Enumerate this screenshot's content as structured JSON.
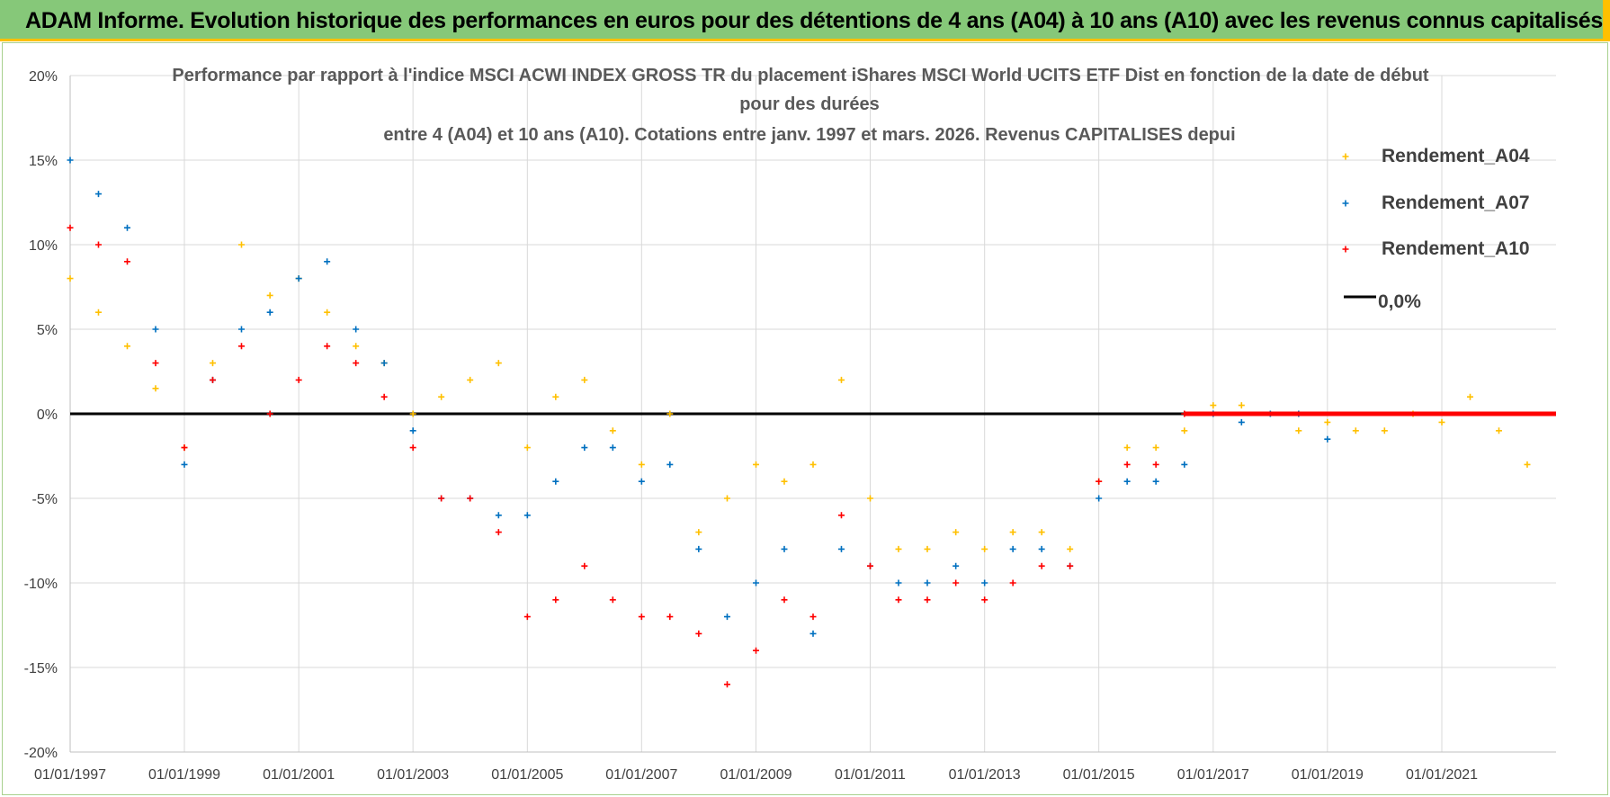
{
  "banner": {
    "title": "ADAM Informe. Evolution historique des performances en euros pour des détentions de 4 ans (A04) à 10 ans (A10) avec les revenus connus capitalisés"
  },
  "colors": {
    "banner_bg": "#86c879",
    "banner_accent": "#ffc000",
    "A04": "#ffc000",
    "A07": "#0070c0",
    "A10": "#ff0000",
    "zero_line": "#000000",
    "grid": "#d9d9d9"
  },
  "chart_data": {
    "type": "scatter",
    "title_lines": [
      "Performance par rapport à l'indice MSCI ACWI INDEX GROSS TR  du placement iShares MSCI World UCITS ETF Dist en fonction de la date de début",
      "pour des durées",
      "entre 4 (A04) et 10 ans (A10). Cotations entre janv. 1997 et mars. 2026. Revenus CAPITALISES depui"
    ],
    "x_axis": {
      "type": "date",
      "range": [
        "1997-01-01",
        "2023-01-01"
      ],
      "tick_labels": [
        "01/01/1997",
        "01/01/1999",
        "01/01/2001",
        "01/01/2003",
        "01/01/2005",
        "01/01/2007",
        "01/01/2009",
        "01/01/2011",
        "01/01/2013",
        "01/01/2015",
        "01/01/2017",
        "01/01/2019",
        "01/01/2021"
      ]
    },
    "y_axis": {
      "unit": "%",
      "range": [
        -20,
        20
      ],
      "tick_values": [
        20,
        15,
        10,
        5,
        0,
        -5,
        -10,
        -15,
        -20
      ],
      "tick_labels": [
        "20%",
        "15%",
        "10%",
        "5%",
        "0%",
        "-5%",
        "-10%",
        "-15%",
        "-20%"
      ]
    },
    "grid": true,
    "legend_position": "right",
    "legend": [
      "Rendement_A04",
      "Rendement_A07",
      "Rendement_A10",
      "0,0%"
    ],
    "series": [
      {
        "name": "Rendement_A04",
        "x": [
          "1997-01-01",
          "1997-07-01",
          "1998-01-01",
          "1998-07-01",
          "1999-01-01",
          "1999-07-01",
          "2000-01-01",
          "2000-07-01",
          "2001-01-01",
          "2001-07-01",
          "2002-01-01",
          "2002-07-01",
          "2003-01-01",
          "2003-07-01",
          "2004-01-01",
          "2004-07-01",
          "2005-01-01",
          "2005-07-01",
          "2006-01-01",
          "2006-07-01",
          "2007-01-01",
          "2007-07-01",
          "2008-01-01",
          "2008-07-01",
          "2009-01-01",
          "2009-07-01",
          "2010-01-01",
          "2010-07-01",
          "2011-01-01",
          "2011-07-01",
          "2012-01-01",
          "2012-07-01",
          "2013-01-01",
          "2013-07-01",
          "2014-01-01",
          "2014-07-01",
          "2015-01-01",
          "2015-07-01",
          "2016-01-01",
          "2016-07-01",
          "2017-01-01",
          "2017-07-01",
          "2018-01-01",
          "2018-07-01",
          "2019-01-01",
          "2019-07-01",
          "2020-01-01",
          "2020-07-01",
          "2021-01-01",
          "2021-07-01",
          "2022-01-01",
          "2022-07-01"
        ],
        "y": [
          8,
          6,
          4,
          1.5,
          -2,
          3,
          10,
          7,
          8,
          6,
          4,
          3,
          0,
          1,
          2,
          3,
          -2,
          1,
          2,
          -1,
          -3,
          0,
          -7,
          -5,
          -3,
          -4,
          -3,
          2,
          -5,
          -8,
          -8,
          -7,
          -8,
          -7,
          -7,
          -8,
          -4,
          -2,
          -2,
          -1,
          0.5,
          0.5,
          0,
          -1,
          -0.5,
          -1,
          -1,
          0,
          -0.5,
          1,
          -1,
          -3
        ]
      },
      {
        "name": "Rendement_A07",
        "x": [
          "1997-01-01",
          "1997-07-01",
          "1998-01-01",
          "1998-07-01",
          "1999-01-01",
          "1999-07-01",
          "2000-01-01",
          "2000-07-01",
          "2001-01-01",
          "2001-07-01",
          "2002-01-01",
          "2002-07-01",
          "2003-01-01",
          "2003-07-01",
          "2004-01-01",
          "2004-07-01",
          "2005-01-01",
          "2005-07-01",
          "2006-01-01",
          "2006-07-01",
          "2007-01-01",
          "2007-07-01",
          "2008-01-01",
          "2008-07-01",
          "2009-01-01",
          "2009-07-01",
          "2010-01-01",
          "2010-07-01",
          "2011-01-01",
          "2011-07-01",
          "2012-01-01",
          "2012-07-01",
          "2013-01-01",
          "2013-07-01",
          "2014-01-01",
          "2014-07-01",
          "2015-01-01",
          "2015-07-01",
          "2016-01-01",
          "2016-07-01",
          "2017-01-01",
          "2017-07-01",
          "2018-01-01",
          "2018-07-01",
          "2019-01-01"
        ],
        "y": [
          15,
          13,
          11,
          5,
          -3,
          2,
          5,
          6,
          8,
          9,
          5,
          3,
          -1,
          -5,
          -5,
          -6,
          -6,
          -4,
          -2,
          -2,
          -4,
          -3,
          -8,
          -12,
          -10,
          -8,
          -13,
          -8,
          -9,
          -10,
          -10,
          -9,
          -10,
          -8,
          -8,
          -9,
          -5,
          -4,
          -4,
          -3,
          0,
          -0.5,
          0,
          0,
          -1.5
        ]
      },
      {
        "name": "Rendement_A10",
        "x": [
          "1997-01-01",
          "1997-07-01",
          "1998-01-01",
          "1998-07-01",
          "1999-01-01",
          "1999-07-01",
          "2000-01-01",
          "2000-07-01",
          "2001-01-01",
          "2001-07-01",
          "2002-01-01",
          "2002-07-01",
          "2003-01-01",
          "2003-07-01",
          "2004-01-01",
          "2004-07-01",
          "2005-01-01",
          "2005-07-01",
          "2006-01-01",
          "2006-07-01",
          "2007-01-01",
          "2007-07-01",
          "2008-01-01",
          "2008-07-01",
          "2009-01-01",
          "2009-07-01",
          "2010-01-01",
          "2010-07-01",
          "2011-01-01",
          "2011-07-01",
          "2012-01-01",
          "2012-07-01",
          "2013-01-01",
          "2013-07-01",
          "2014-01-01",
          "2014-07-01",
          "2015-01-01",
          "2015-07-01",
          "2016-01-01",
          "2016-07-01"
        ],
        "y": [
          11,
          10,
          9,
          3,
          -2,
          2,
          4,
          0,
          2,
          4,
          3,
          1,
          -2,
          -5,
          -5,
          -7,
          -12,
          -11,
          -9,
          -11,
          -12,
          -12,
          -13,
          -16,
          -14,
          -11,
          -12,
          -6,
          -9,
          -11,
          -11,
          -10,
          -11,
          -10,
          -9,
          -9,
          -4,
          -3,
          -3,
          0
        ]
      },
      {
        "name": "0,0%",
        "type": "line",
        "x": [
          "1997-01-01",
          "2023-01-01"
        ],
        "y": [
          0,
          0
        ]
      }
    ]
  }
}
